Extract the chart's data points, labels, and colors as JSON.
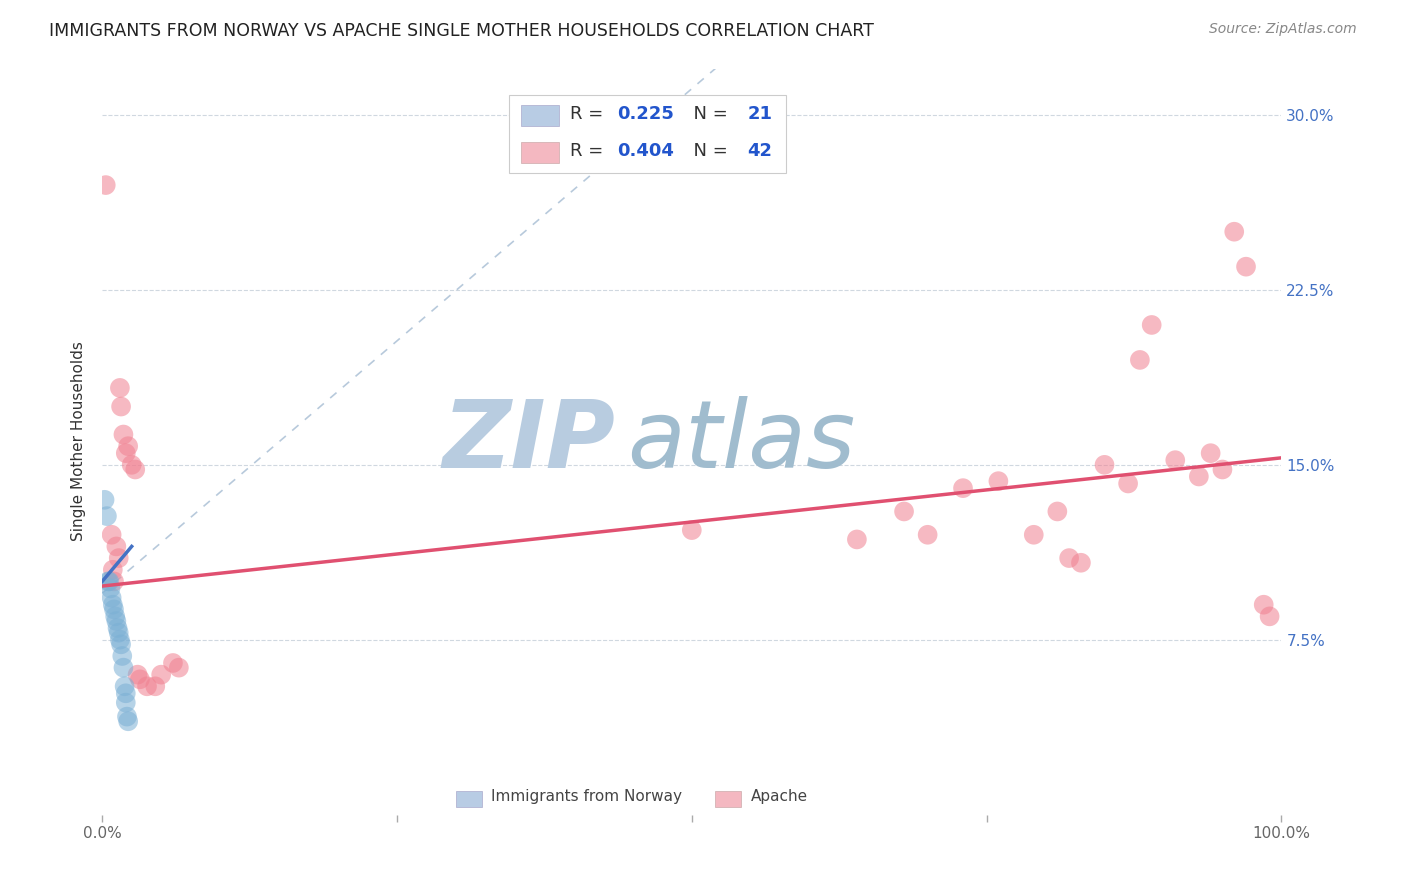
{
  "title": "IMMIGRANTS FROM NORWAY VS APACHE SINGLE MOTHER HOUSEHOLDS CORRELATION CHART",
  "source": "Source: ZipAtlas.com",
  "ylabel": "Single Mother Households",
  "xlim": [
    0.0,
    1.0
  ],
  "ylim": [
    0.0,
    0.32
  ],
  "ytick_values": [
    0.075,
    0.15,
    0.225,
    0.3
  ],
  "ytick_labels": [
    "7.5%",
    "15.0%",
    "22.5%",
    "30.0%"
  ],
  "grid_color": "#d0d8e0",
  "background_color": "#ffffff",
  "legend_r_blue": "0.225",
  "legend_n_blue": "21",
  "legend_r_pink": "0.404",
  "legend_n_pink": "42",
  "legend_color_blue": "#b8cce4",
  "legend_color_pink": "#f4b8c1",
  "scatter_blue_color": "#7bafd4",
  "scatter_pink_color": "#f08090",
  "trendline_blue_color": "#4472c4",
  "trendline_pink_color": "#e05070",
  "trendline_dashed_color": "#b0c4d8",
  "watermark_zip_color": "#c5d5e5",
  "watermark_atlas_color": "#a8c4d8",
  "blue_points": [
    [
      0.002,
      0.135
    ],
    [
      0.004,
      0.128
    ],
    [
      0.005,
      0.1
    ],
    [
      0.006,
      0.1
    ],
    [
      0.007,
      0.097
    ],
    [
      0.008,
      0.093
    ],
    [
      0.009,
      0.09
    ],
    [
      0.01,
      0.088
    ],
    [
      0.011,
      0.085
    ],
    [
      0.012,
      0.083
    ],
    [
      0.013,
      0.08
    ],
    [
      0.014,
      0.078
    ],
    [
      0.015,
      0.075
    ],
    [
      0.016,
      0.073
    ],
    [
      0.017,
      0.068
    ],
    [
      0.018,
      0.063
    ],
    [
      0.019,
      0.055
    ],
    [
      0.02,
      0.052
    ],
    [
      0.02,
      0.048
    ],
    [
      0.021,
      0.042
    ],
    [
      0.022,
      0.04
    ]
  ],
  "pink_points": [
    [
      0.003,
      0.27
    ],
    [
      0.008,
      0.12
    ],
    [
      0.009,
      0.105
    ],
    [
      0.01,
      0.1
    ],
    [
      0.012,
      0.115
    ],
    [
      0.014,
      0.11
    ],
    [
      0.015,
      0.183
    ],
    [
      0.016,
      0.175
    ],
    [
      0.018,
      0.163
    ],
    [
      0.02,
      0.155
    ],
    [
      0.022,
      0.158
    ],
    [
      0.025,
      0.15
    ],
    [
      0.028,
      0.148
    ],
    [
      0.03,
      0.06
    ],
    [
      0.032,
      0.058
    ],
    [
      0.038,
      0.055
    ],
    [
      0.045,
      0.055
    ],
    [
      0.05,
      0.06
    ],
    [
      0.06,
      0.065
    ],
    [
      0.065,
      0.063
    ],
    [
      0.5,
      0.122
    ],
    [
      0.64,
      0.118
    ],
    [
      0.68,
      0.13
    ],
    [
      0.7,
      0.12
    ],
    [
      0.73,
      0.14
    ],
    [
      0.76,
      0.143
    ],
    [
      0.79,
      0.12
    ],
    [
      0.81,
      0.13
    ],
    [
      0.82,
      0.11
    ],
    [
      0.83,
      0.108
    ],
    [
      0.85,
      0.15
    ],
    [
      0.87,
      0.142
    ],
    [
      0.88,
      0.195
    ],
    [
      0.89,
      0.21
    ],
    [
      0.91,
      0.152
    ],
    [
      0.93,
      0.145
    ],
    [
      0.94,
      0.155
    ],
    [
      0.95,
      0.148
    ],
    [
      0.96,
      0.25
    ],
    [
      0.97,
      0.235
    ],
    [
      0.985,
      0.09
    ],
    [
      0.99,
      0.085
    ]
  ],
  "pink_trendline": [
    [
      0.0,
      0.098
    ],
    [
      1.0,
      0.153
    ]
  ],
  "blue_trendline": [
    [
      0.0,
      0.1
    ],
    [
      0.025,
      0.115
    ]
  ]
}
